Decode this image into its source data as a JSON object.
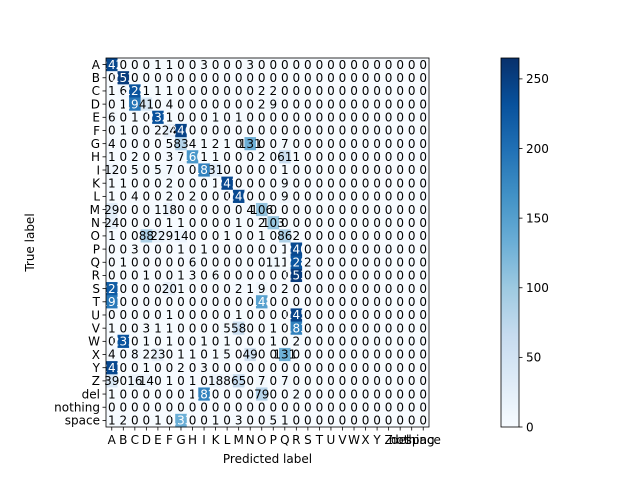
{
  "chart_data": {
    "type": "heatmap",
    "title": "",
    "xlabel": "Predicted label",
    "ylabel": "True label",
    "x_categories": [
      "A",
      "B",
      "C",
      "D",
      "E",
      "F",
      "G",
      "H",
      "I",
      "K",
      "L",
      "M",
      "N",
      "O",
      "P",
      "Q",
      "R",
      "S",
      "T",
      "U",
      "V",
      "W",
      "X",
      "Y",
      "Z",
      "del",
      "nothing",
      "space"
    ],
    "y_categories": [
      "A",
      "B",
      "C",
      "D",
      "E",
      "F",
      "G",
      "H",
      "I",
      "K",
      "L",
      "M",
      "N",
      "O",
      "P",
      "Q",
      "R",
      "S",
      "T",
      "U",
      "V",
      "W",
      "X",
      "Y",
      "Z",
      "del",
      "nothing",
      "space"
    ],
    "values": [
      [
        242,
        0,
        0,
        0,
        1,
        1,
        0,
        0,
        3,
        0,
        0,
        0,
        3,
        0,
        0,
        0,
        0,
        0,
        0,
        0,
        0,
        0,
        0,
        0,
        0,
        0,
        0,
        0
      ],
      [
        0,
        253,
        0,
        0,
        0,
        0,
        0,
        0,
        0,
        0,
        0,
        0,
        0,
        0,
        0,
        0,
        0,
        0,
        0,
        0,
        0,
        0,
        0,
        0,
        0,
        0,
        0,
        0
      ],
      [
        1,
        6,
        229,
        1,
        1,
        1,
        0,
        0,
        0,
        0,
        0,
        0,
        0,
        2,
        2,
        0,
        0,
        0,
        0,
        0,
        0,
        0,
        0,
        0,
        0,
        0,
        0,
        0
      ],
      [
        0,
        1,
        194,
        41,
        0,
        4,
        0,
        0,
        0,
        0,
        0,
        0,
        0,
        2,
        9,
        0,
        0,
        0,
        0,
        0,
        0,
        0,
        0,
        0,
        0,
        0,
        0,
        0
      ],
      [
        6,
        0,
        1,
        0,
        232,
        1,
        0,
        0,
        0,
        1,
        0,
        1,
        0,
        0,
        0,
        0,
        0,
        0,
        0,
        0,
        0,
        0,
        0,
        0,
        0,
        0,
        0,
        0
      ],
      [
        0,
        1,
        0,
        0,
        2,
        24,
        246,
        0,
        0,
        0,
        0,
        0,
        0,
        0,
        0,
        0,
        0,
        0,
        0,
        0,
        0,
        0,
        0,
        0,
        0,
        0,
        0,
        0
      ],
      [
        4,
        0,
        0,
        0,
        0,
        5,
        83,
        4,
        1,
        2,
        1,
        0,
        131,
        0,
        0,
        7,
        0,
        0,
        0,
        0,
        0,
        0,
        0,
        0,
        0,
        0,
        0,
        0
      ],
      [
        1,
        0,
        2,
        0,
        0,
        3,
        7,
        160,
        1,
        1,
        0,
        0,
        0,
        2,
        0,
        61,
        1,
        0,
        0,
        0,
        0,
        0,
        0,
        0,
        0,
        0,
        0,
        0
      ],
      [
        12,
        0,
        5,
        0,
        5,
        7,
        0,
        0,
        183,
        31,
        0,
        0,
        0,
        0,
        0,
        1,
        0,
        0,
        0,
        0,
        0,
        0,
        0,
        0,
        0,
        0,
        0,
        0
      ],
      [
        1,
        1,
        0,
        0,
        0,
        2,
        0,
        0,
        0,
        1,
        241,
        0,
        0,
        0,
        0,
        9,
        0,
        0,
        0,
        0,
        0,
        0,
        0,
        0,
        0,
        0,
        0,
        0
      ],
      [
        1,
        0,
        4,
        0,
        0,
        2,
        0,
        2,
        0,
        0,
        0,
        240,
        0,
        0,
        0,
        9,
        0,
        0,
        0,
        0,
        0,
        0,
        0,
        0,
        0,
        0,
        0,
        0
      ],
      [
        29,
        0,
        0,
        0,
        1,
        18,
        0,
        0,
        0,
        0,
        0,
        0,
        4,
        106,
        0,
        0,
        0,
        0,
        0,
        0,
        0,
        0,
        0,
        0,
        0,
        0,
        0,
        0
      ],
      [
        24,
        0,
        0,
        0,
        0,
        1,
        1,
        0,
        0,
        0,
        0,
        1,
        0,
        2,
        103,
        0,
        0,
        0,
        0,
        0,
        0,
        0,
        0,
        0,
        0,
        0,
        0,
        0
      ],
      [
        1,
        0,
        0,
        88,
        22,
        9,
        14,
        0,
        0,
        0,
        1,
        0,
        0,
        1,
        0,
        86,
        2,
        0,
        0,
        0,
        0,
        0,
        0,
        0,
        0,
        0,
        0,
        0
      ],
      [
        0,
        0,
        3,
        0,
        0,
        0,
        1,
        0,
        1,
        0,
        0,
        0,
        0,
        0,
        0,
        1,
        240,
        0,
        0,
        0,
        0,
        0,
        0,
        0,
        0,
        0,
        0,
        0
      ],
      [
        0,
        1,
        0,
        0,
        0,
        0,
        0,
        6,
        0,
        0,
        0,
        0,
        0,
        0,
        11,
        1,
        228,
        2,
        0,
        0,
        0,
        0,
        0,
        0,
        0,
        0,
        0,
        0
      ],
      [
        0,
        0,
        0,
        1,
        0,
        0,
        1,
        3,
        0,
        6,
        0,
        0,
        0,
        0,
        0,
        0,
        253,
        0,
        0,
        0,
        0,
        0,
        0,
        0,
        0,
        0,
        0,
        0
      ],
      [
        221,
        0,
        0,
        0,
        0,
        20,
        1,
        0,
        0,
        0,
        0,
        2,
        1,
        9,
        0,
        2,
        0,
        0,
        0,
        0,
        0,
        0,
        0,
        0,
        0,
        0,
        0,
        0
      ],
      [
        191,
        0,
        0,
        0,
        0,
        0,
        0,
        0,
        0,
        0,
        0,
        0,
        0,
        148,
        0,
        0,
        0,
        0,
        0,
        0,
        0,
        0,
        0,
        0,
        0,
        0,
        0,
        0
      ],
      [
        0,
        0,
        0,
        0,
        0,
        1,
        0,
        0,
        0,
        0,
        0,
        1,
        0,
        0,
        0,
        0,
        245,
        0,
        0,
        0,
        0,
        0,
        0,
        0,
        0,
        0,
        0,
        0
      ],
      [
        1,
        0,
        0,
        3,
        1,
        1,
        0,
        0,
        0,
        0,
        5,
        58,
        0,
        0,
        1,
        0,
        183,
        0,
        0,
        0,
        0,
        0,
        0,
        0,
        0,
        0,
        0,
        0
      ],
      [
        0,
        231,
        0,
        1,
        0,
        1,
        0,
        0,
        1,
        0,
        1,
        0,
        0,
        0,
        1,
        0,
        2,
        0,
        0,
        0,
        0,
        0,
        0,
        0,
        0,
        0,
        0,
        0
      ],
      [
        4,
        0,
        8,
        2,
        23,
        0,
        1,
        1,
        0,
        1,
        5,
        0,
        49,
        0,
        0,
        131,
        0,
        0,
        0,
        0,
        0,
        0,
        0,
        0,
        0,
        0,
        0,
        0
      ],
      [
        241,
        0,
        0,
        1,
        0,
        0,
        2,
        0,
        3,
        0,
        0,
        0,
        0,
        0,
        0,
        0,
        0,
        0,
        0,
        0,
        0,
        0,
        0,
        0,
        0,
        0,
        0,
        0
      ],
      [
        39,
        0,
        16,
        14,
        0,
        1,
        0,
        1,
        0,
        18,
        8,
        65,
        0,
        7,
        0,
        7,
        0,
        0,
        0,
        0,
        0,
        0,
        0,
        0,
        0,
        0,
        0,
        0
      ],
      [
        1,
        0,
        0,
        0,
        0,
        0,
        0,
        1,
        182,
        0,
        0,
        0,
        0,
        79,
        0,
        0,
        2,
        0,
        0,
        0,
        0,
        0,
        0,
        0,
        0,
        0,
        0,
        0
      ],
      [
        0,
        0,
        0,
        0,
        0,
        0,
        0,
        0,
        0,
        0,
        0,
        0,
        0,
        0,
        0,
        0,
        0,
        0,
        0,
        0,
        0,
        0,
        0,
        0,
        0,
        0,
        0,
        0
      ],
      [
        1,
        2,
        0,
        0,
        1,
        0,
        133,
        0,
        0,
        1,
        0,
        3,
        0,
        0,
        5,
        1,
        0,
        0,
        0,
        0,
        0,
        0,
        0,
        0,
        0,
        0,
        0,
        0
      ]
    ],
    "vmin": 0,
    "vmax": 265,
    "colormap": "Blues",
    "colorbar_ticks": [
      0,
      50,
      100,
      150,
      200,
      250
    ],
    "text_threshold": 132
  }
}
